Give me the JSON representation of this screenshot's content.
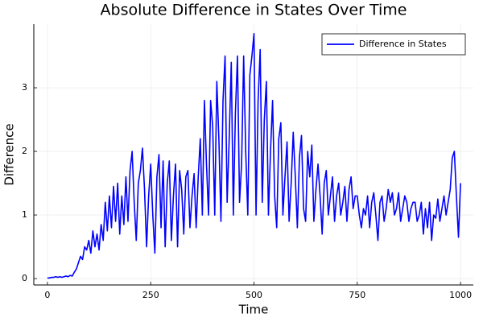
{
  "chart_data": {
    "type": "line",
    "title": "Absolute Difference in States Over Time",
    "x_label": "Time",
    "y_label": "Difference",
    "x": [
      0,
      5,
      10,
      15,
      20,
      25,
      30,
      35,
      40,
      45,
      50,
      55,
      60,
      65,
      70,
      75,
      80,
      85,
      90,
      95,
      100,
      105,
      110,
      115,
      120,
      125,
      130,
      135,
      140,
      145,
      150,
      155,
      160,
      165,
      170,
      175,
      180,
      185,
      190,
      195,
      200,
      205,
      210,
      215,
      220,
      225,
      230,
      235,
      240,
      245,
      250,
      255,
      260,
      265,
      270,
      275,
      280,
      285,
      290,
      295,
      300,
      305,
      310,
      315,
      320,
      325,
      330,
      335,
      340,
      345,
      350,
      355,
      360,
      365,
      370,
      375,
      380,
      385,
      390,
      395,
      400,
      405,
      410,
      415,
      420,
      425,
      430,
      435,
      440,
      445,
      450,
      455,
      460,
      465,
      470,
      475,
      480,
      485,
      490,
      495,
      500,
      505,
      510,
      515,
      520,
      525,
      530,
      535,
      540,
      545,
      550,
      555,
      560,
      565,
      570,
      575,
      580,
      585,
      590,
      595,
      600,
      605,
      610,
      615,
      620,
      625,
      630,
      635,
      640,
      645,
      650,
      655,
      660,
      665,
      670,
      675,
      680,
      685,
      690,
      695,
      700,
      705,
      710,
      715,
      720,
      725,
      730,
      735,
      740,
      745,
      750,
      755,
      760,
      765,
      770,
      775,
      780,
      785,
      790,
      795,
      800,
      805,
      810,
      815,
      820,
      825,
      830,
      835,
      840,
      845,
      850,
      855,
      860,
      865,
      870,
      875,
      880,
      885,
      890,
      895,
      900,
      905,
      910,
      915,
      920,
      925,
      930,
      935,
      940,
      945,
      950,
      955,
      960,
      965,
      970,
      975,
      980,
      985,
      990,
      995,
      1000
    ],
    "series": [
      {
        "name": "Difference in States",
        "color": "#0000ff",
        "values": [
          0.01,
          0.01,
          0.02,
          0.02,
          0.03,
          0.02,
          0.03,
          0.02,
          0.03,
          0.04,
          0.03,
          0.05,
          0.04,
          0.1,
          0.15,
          0.25,
          0.35,
          0.3,
          0.5,
          0.45,
          0.6,
          0.4,
          0.75,
          0.5,
          0.7,
          0.45,
          0.85,
          0.6,
          1.2,
          0.75,
          1.3,
          0.8,
          1.45,
          0.9,
          1.5,
          0.7,
          1.3,
          0.85,
          1.6,
          0.9,
          1.7,
          2.0,
          1.2,
          0.6,
          1.5,
          1.7,
          2.05,
          1.4,
          0.5,
          1.3,
          1.8,
          1.0,
          0.4,
          1.6,
          1.95,
          0.8,
          1.85,
          0.5,
          1.5,
          1.85,
          0.6,
          1.3,
          1.8,
          0.5,
          1.7,
          1.4,
          0.7,
          1.6,
          1.7,
          0.8,
          1.3,
          1.65,
          0.8,
          1.6,
          2.2,
          1.0,
          2.8,
          1.8,
          1.0,
          2.8,
          2.4,
          1.0,
          3.1,
          2.2,
          0.9,
          2.8,
          3.5,
          1.2,
          2.2,
          3.4,
          1.0,
          2.6,
          3.5,
          1.2,
          1.8,
          3.5,
          2.0,
          1.0,
          3.2,
          3.5,
          3.85,
          1.0,
          2.8,
          3.6,
          1.2,
          2.5,
          3.1,
          1.0,
          2.0,
          2.8,
          1.3,
          0.8,
          2.2,
          2.45,
          1.0,
          1.6,
          2.15,
          0.9,
          1.5,
          2.3,
          1.6,
          0.8,
          1.9,
          2.25,
          1.1,
          0.9,
          2.0,
          1.6,
          2.1,
          0.9,
          1.4,
          1.8,
          1.3,
          0.7,
          1.5,
          1.7,
          1.0,
          1.3,
          1.6,
          0.9,
          1.3,
          1.5,
          1.0,
          1.2,
          1.45,
          0.9,
          1.4,
          1.6,
          1.1,
          1.3,
          1.3,
          1.0,
          0.8,
          1.1,
          1.0,
          1.3,
          0.8,
          1.2,
          1.35,
          1.0,
          0.6,
          1.2,
          1.3,
          0.9,
          1.1,
          1.4,
          1.2,
          1.35,
          1.0,
          1.1,
          1.35,
          0.9,
          1.1,
          1.3,
          1.2,
          0.9,
          1.1,
          1.2,
          1.2,
          0.9,
          1.0,
          1.2,
          0.7,
          1.1,
          0.8,
          1.2,
          0.6,
          1.0,
          0.95,
          1.25,
          0.9,
          1.1,
          1.3,
          1.0,
          1.2,
          1.4,
          1.9,
          2.0,
          1.3,
          0.65,
          1.5
        ]
      }
    ],
    "xlim": [
      -33,
      1031
    ],
    "ylim": [
      -0.1,
      4.0
    ],
    "xticks": [
      0,
      250,
      500,
      750,
      1000
    ],
    "yticks": [
      0,
      1,
      2,
      3
    ],
    "grid": true,
    "legend": "top-right"
  }
}
